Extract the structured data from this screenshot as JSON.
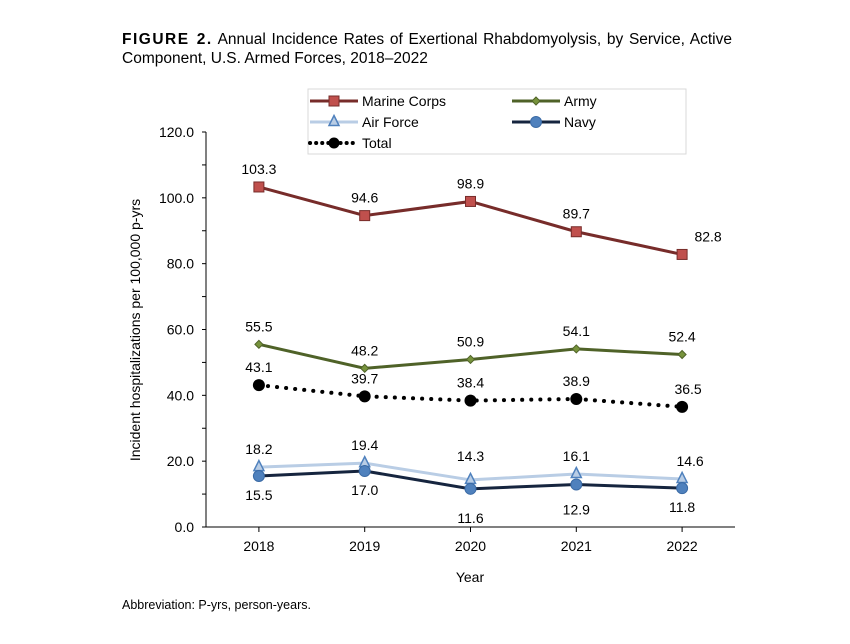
{
  "caption": {
    "label": "FIGURE 2.",
    "text": "Annual Incidence Rates of Exertional Rhabdomyolysis, by Service, Active Component, U.S. Armed Forces, 2018–2022"
  },
  "footnote": "Abbreviation: P-yrs, person-years.",
  "chart_data": {
    "type": "line",
    "xlabel": "Year",
    "ylabel": "Incident hospitalizations per 100,000 p-yrs",
    "categories": [
      "2018",
      "2019",
      "2020",
      "2021",
      "2022"
    ],
    "ylim": [
      0,
      120
    ],
    "yticks": [
      "0.0",
      "20.0",
      "40.0",
      "60.0",
      "80.0",
      "100.0",
      "120.0"
    ],
    "grid": false,
    "legend_placement": "top",
    "series": [
      {
        "name": "Marine Corps",
        "values": [
          103.3,
          94.6,
          98.9,
          89.7,
          82.8
        ],
        "line": "#772c2a",
        "fill": "#c0504d",
        "marker": "square",
        "dash": false,
        "labelpos": "above"
      },
      {
        "name": "Army",
        "values": [
          55.5,
          48.2,
          50.9,
          54.1,
          52.4
        ],
        "line": "#4f6228",
        "fill": "#77933c",
        "marker": "diamond",
        "dash": false,
        "labelpos": "above"
      },
      {
        "name": "Air Force",
        "values": [
          18.2,
          19.4,
          14.3,
          16.1,
          14.6
        ],
        "line": "#b9cde5",
        "fill": "#b9cde5",
        "marker": "triangle",
        "dash": false,
        "labelpos": "above"
      },
      {
        "name": "Navy",
        "values": [
          15.5,
          17.0,
          11.6,
          12.9,
          11.8
        ],
        "line": "#16253f",
        "fill": "#4f81bd",
        "marker": "circle",
        "dash": false,
        "labelpos": "below"
      },
      {
        "name": "Total",
        "values": [
          43.1,
          39.7,
          38.4,
          38.9,
          36.5
        ],
        "line": "#000000",
        "fill": "#000000",
        "marker": "circle",
        "dash": true,
        "labelpos": "above"
      }
    ]
  }
}
